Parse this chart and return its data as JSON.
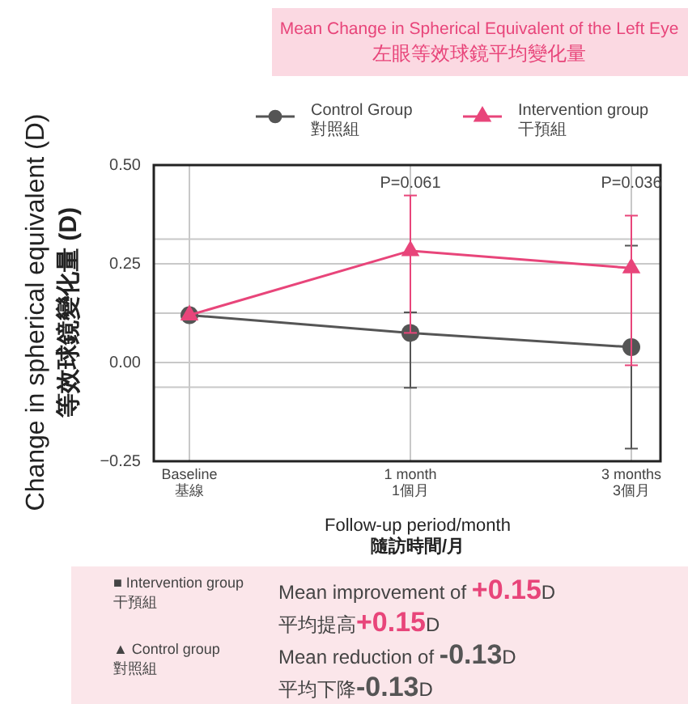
{
  "chart_data": {
    "type": "line",
    "title": "Mean Change in Spherical Equivalent of the Left Eye\n左眼等效球鏡平均變化量",
    "xlabel": "Follow-up period/month\n隨訪時間/月",
    "ylabel": "Change in spherical equivalent (D)\n等效球鏡變化量 (D)",
    "categories": [
      "Baseline\n基線",
      "1 month\n1個月",
      "3 months\n3個月"
    ],
    "series": [
      {
        "name": "Control Group\n對照組",
        "color": "#555555",
        "marker": "circle",
        "values": [
          0.12,
          0.075,
          0.039
        ],
        "errors": [
          null,
          [
            -0.064,
            0.127
          ],
          [
            -0.218,
            0.296
          ]
        ]
      },
      {
        "name": "Intervention group\n干預組",
        "color": "#e8457a",
        "marker": "triangle",
        "values": [
          0.12,
          0.283,
          0.239
        ],
        "errors": [
          null,
          [
            0.075,
            0.423
          ],
          [
            -0.007,
            0.372
          ]
        ]
      }
    ],
    "ylim": [
      -0.25,
      0.5
    ],
    "yticks": [
      {
        "value": -0.25,
        "label": "−0.25"
      },
      {
        "value": -0.0625,
        "label": null
      },
      {
        "value": 0,
        "label": "0.00"
      },
      {
        "value": 0.125,
        "label": null
      },
      {
        "value": 0.25,
        "label": "0.25"
      },
      {
        "value": 0.3125,
        "label": null
      },
      {
        "value": 0.5,
        "label": "0.50"
      }
    ],
    "grid": true,
    "legend": "top",
    "annotations": [
      "P=0.061",
      "P=0.036",
      "■ Intervention group\n干預組",
      "Mean improvement of +0.15D",
      "平均提高+0.15D",
      "▲ Control group\n對照組",
      "Mean reduction of -0.13D",
      "平均下降-0.13D"
    ]
  }
}
